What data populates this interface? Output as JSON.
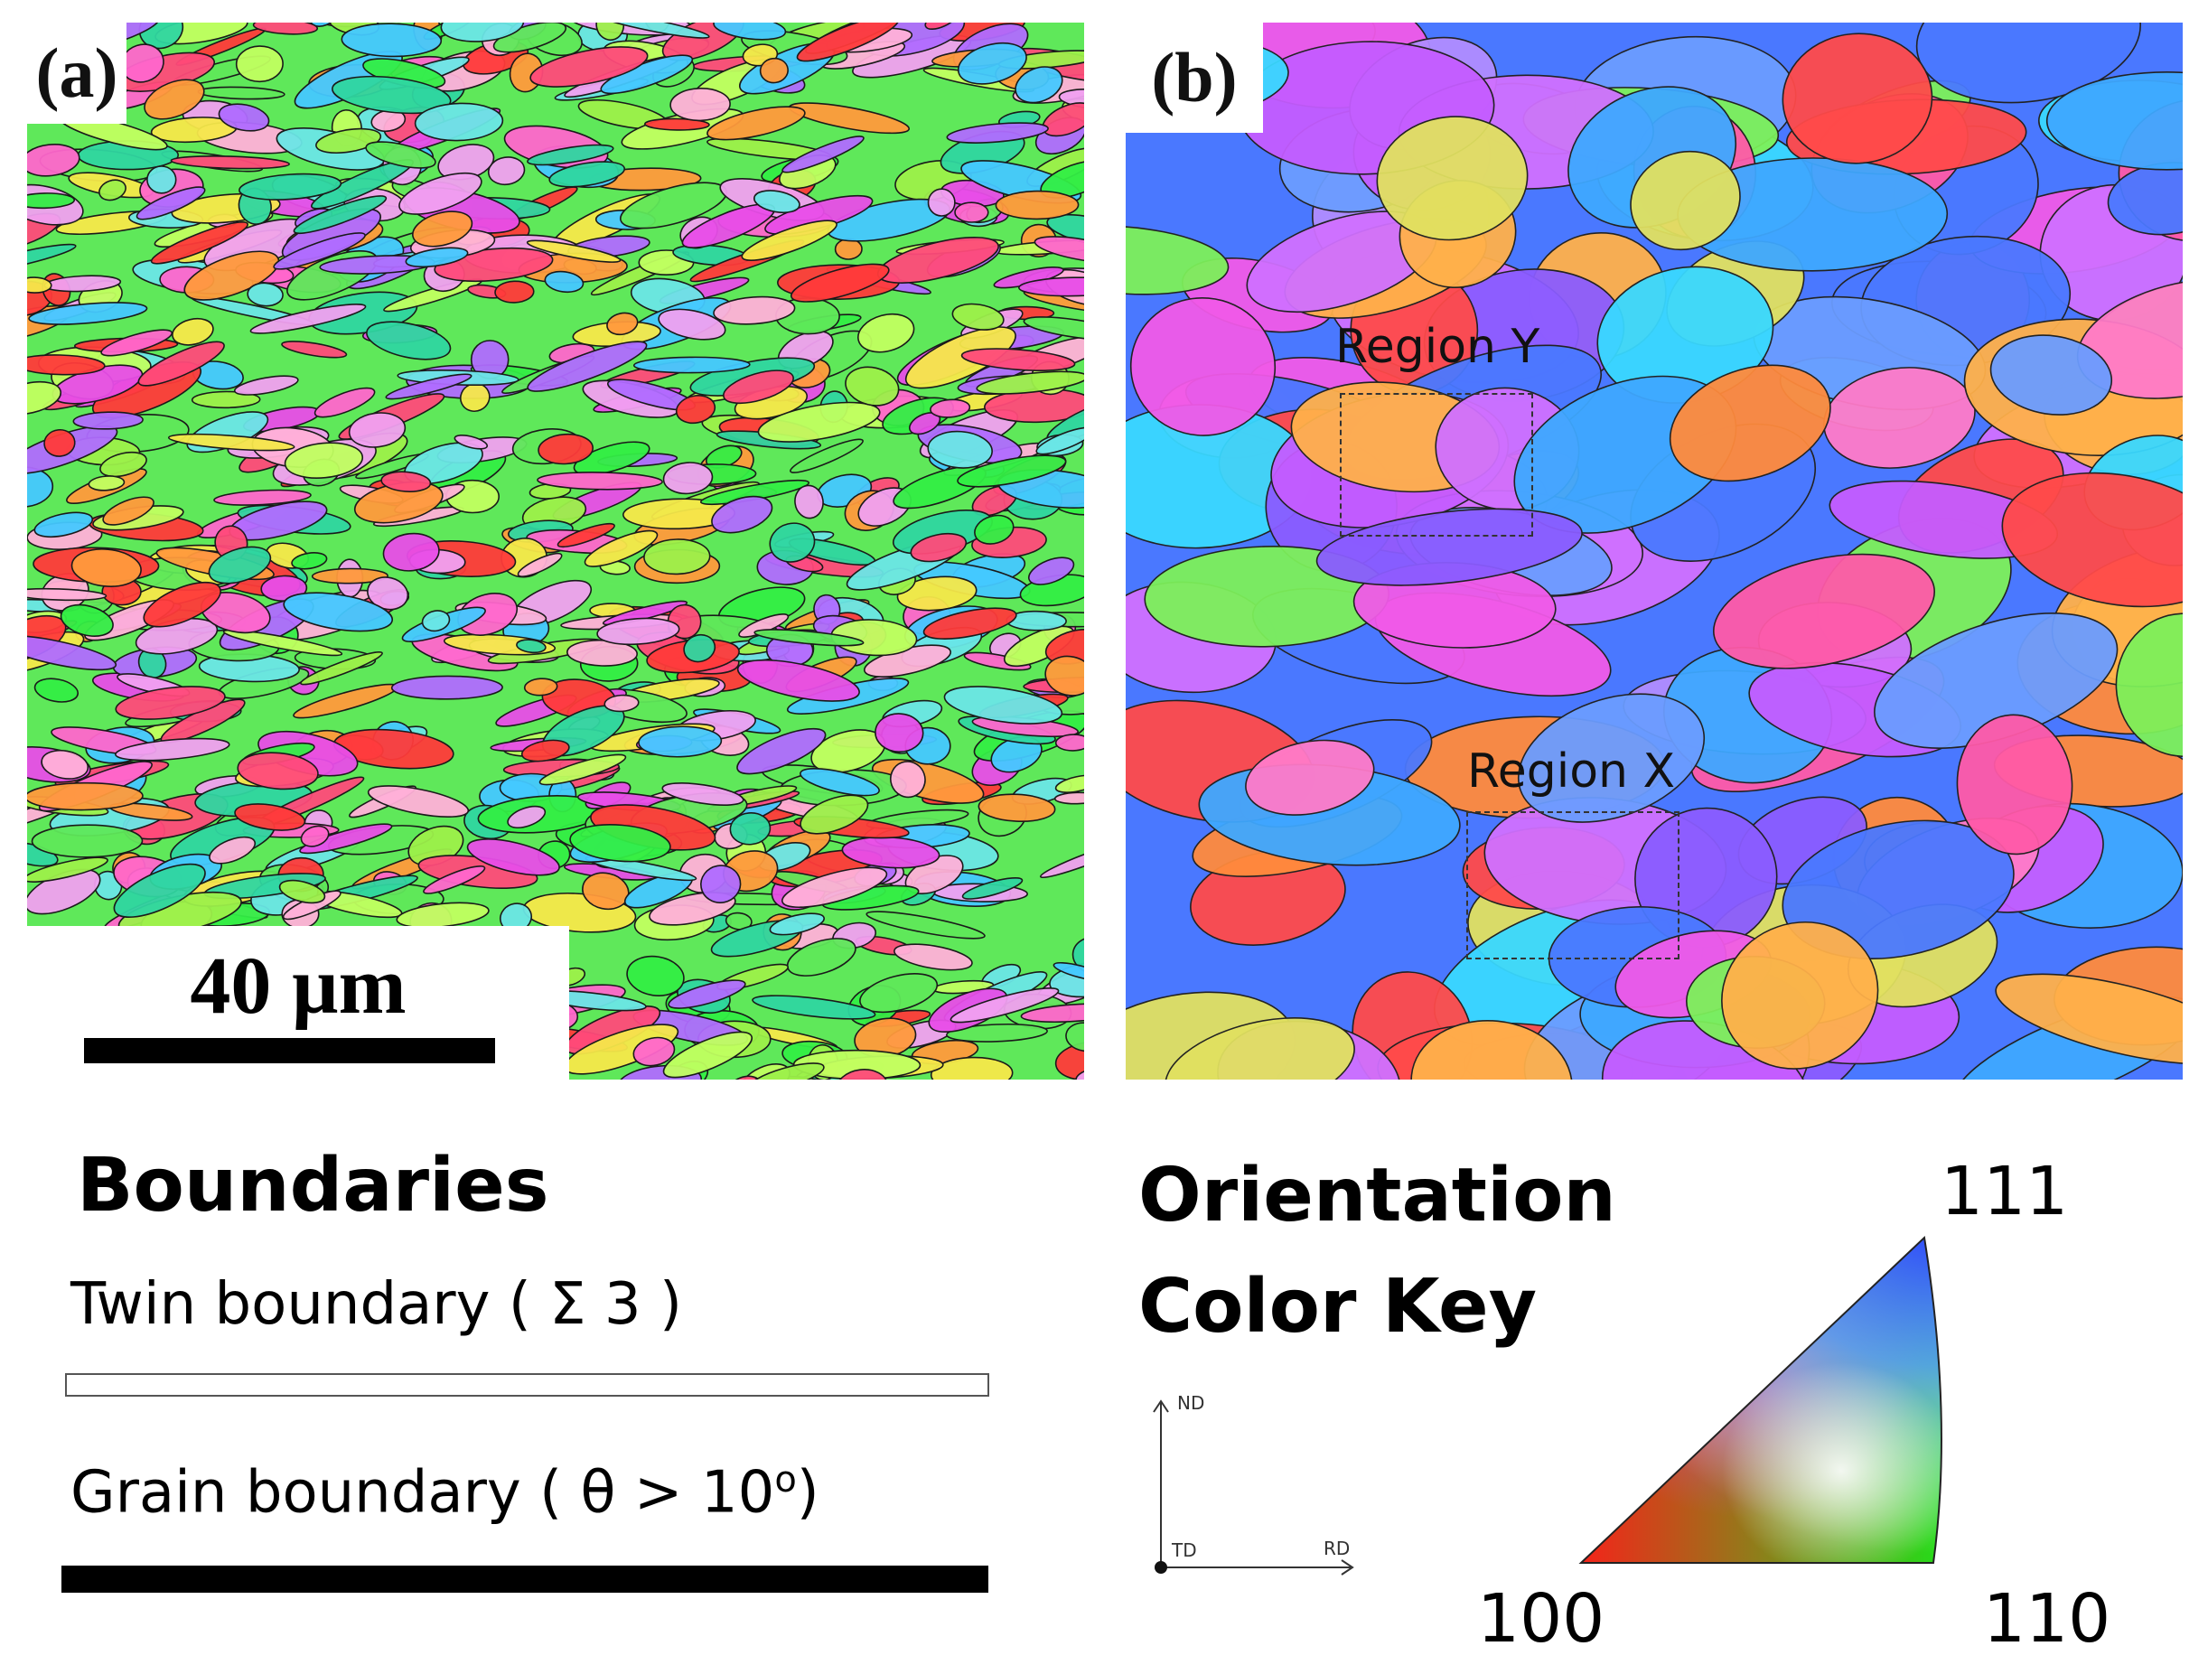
{
  "panels": {
    "a": {
      "label": "(a)",
      "scale_bar": "40 µm"
    },
    "b": {
      "label": "(b)",
      "region_y": "Region Y",
      "region_x": "Region X"
    }
  },
  "legend": {
    "boundaries_title": "Boundaries",
    "twin_boundary": "Twin boundary ( Σ 3 )",
    "grain_boundary_prefix": "Grain boundary ( θ > 10",
    "grain_boundary_sup": "o",
    "grain_boundary_suffix": ")"
  },
  "color_key": {
    "title_line1": "Orientation",
    "title_line2": "Color Key",
    "corner_111": "111",
    "corner_100": "100",
    "corner_110": "110",
    "axis_nd": "ND",
    "axis_td": "TD",
    "axis_rd": "RD"
  },
  "colors": {
    "red_100": "#ff1a1a",
    "green_110": "#19e619",
    "blue_111": "#2a3cff"
  }
}
